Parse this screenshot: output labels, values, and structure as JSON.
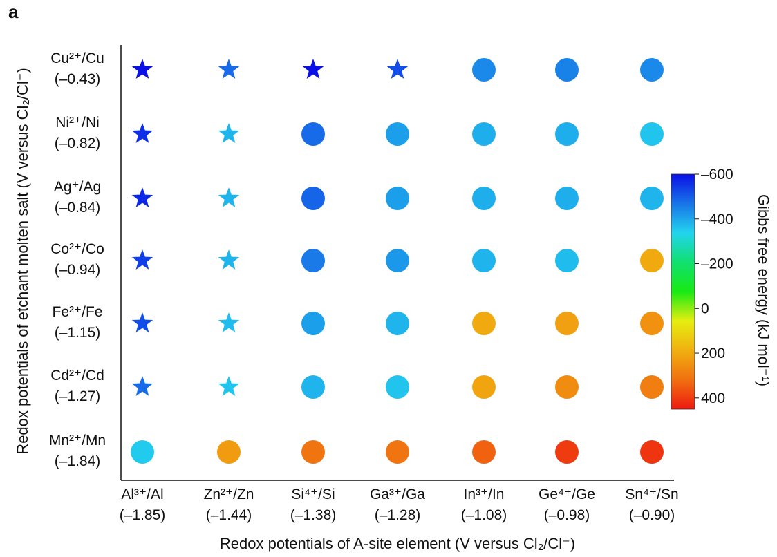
{
  "panel_label": "a",
  "chart_data": {
    "type": "scatter",
    "title": "",
    "xlabel": "Redox potentials of A-site element (V versus Cl₂/Cl⁻)",
    "ylabel": "Redox potentials of etchant molten salt (V versus Cl₂/Cl⁻)",
    "x_categories": [
      {
        "name": "Al³⁺/Al",
        "potential": "(–1.85)"
      },
      {
        "name": "Zn²⁺/Zn",
        "potential": "(–1.44)"
      },
      {
        "name": "Si⁴⁺/Si",
        "potential": "(–1.38)"
      },
      {
        "name": "Ga³⁺/Ga",
        "potential": "(–1.28)"
      },
      {
        "name": "In³⁺/In",
        "potential": "(–1.08)"
      },
      {
        "name": "Ge⁴⁺/Ge",
        "potential": "(–0.98)"
      },
      {
        "name": "Sn⁴⁺/Sn",
        "potential": "(–0.90)"
      }
    ],
    "y_categories": [
      {
        "name": "Cu²⁺/Cu",
        "potential": "(–0.43)"
      },
      {
        "name": "Ni²⁺/Ni",
        "potential": "(–0.82)"
      },
      {
        "name": "Ag⁺/Ag",
        "potential": "(–0.84)"
      },
      {
        "name": "Co²⁺/Co",
        "potential": "(–0.94)"
      },
      {
        "name": "Fe²⁺/Fe",
        "potential": "(–1.15)"
      },
      {
        "name": "Cd²⁺/Cd",
        "potential": "(–1.27)"
      },
      {
        "name": "Mn²⁺/Mn",
        "potential": "(–1.84)"
      }
    ],
    "values": [
      [
        -600,
        -480,
        -600,
        -520,
        -440,
        -450,
        -440
      ],
      [
        -560,
        -380,
        -480,
        -410,
        -390,
        -390,
        -360
      ],
      [
        -570,
        -380,
        -490,
        -410,
        -390,
        -390,
        -380
      ],
      [
        -540,
        -380,
        -460,
        -420,
        -380,
        -370,
        200
      ],
      [
        -520,
        -370,
        -410,
        -380,
        200,
        220,
        250
      ],
      [
        -480,
        -360,
        -380,
        -360,
        210,
        260,
        290
      ],
      [
        -350,
        230,
        310,
        310,
        340,
        400,
        410
      ]
    ],
    "markers": [
      [
        "star",
        "star",
        "star",
        "star",
        "circle",
        "circle",
        "circle"
      ],
      [
        "star",
        "star",
        "circle",
        "circle",
        "circle",
        "circle",
        "circle"
      ],
      [
        "star",
        "star",
        "circle",
        "circle",
        "circle",
        "circle",
        "circle"
      ],
      [
        "star",
        "star",
        "circle",
        "circle",
        "circle",
        "circle",
        "circle"
      ],
      [
        "star",
        "star",
        "circle",
        "circle",
        "circle",
        "circle",
        "circle"
      ],
      [
        "star",
        "star",
        "circle",
        "circle",
        "circle",
        "circle",
        "circle"
      ],
      [
        "circle",
        "circle",
        "circle",
        "circle",
        "circle",
        "circle",
        "circle"
      ]
    ],
    "colorbar": {
      "label": "Gibbs free energy (kJ mol⁻¹)",
      "range": [
        -600,
        450
      ],
      "ticks": [
        -600,
        -400,
        -200,
        0,
        200,
        400
      ],
      "tick_labels": [
        "–600",
        "–400",
        "–200",
        "0",
        "200",
        "400"
      ],
      "colors": [
        "#0a10e6",
        "#1874e8",
        "#22d4ee",
        "#10e070",
        "#18ea14",
        "#e6ee10",
        "#f0b010",
        "#f07010",
        "#ee1a10"
      ]
    }
  }
}
